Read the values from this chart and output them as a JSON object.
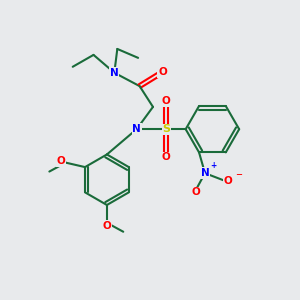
{
  "bg": "#e8eaec",
  "bond_color": "#1a6b3a",
  "bond_width": 1.5,
  "N_color": "#0000ff",
  "O_color": "#ff0000",
  "S_color": "#cccc00",
  "font_size": 7.5,
  "figsize": [
    3.0,
    3.0
  ],
  "dpi": 100,
  "xlim": [
    0,
    10
  ],
  "ylim": [
    0,
    10
  ]
}
